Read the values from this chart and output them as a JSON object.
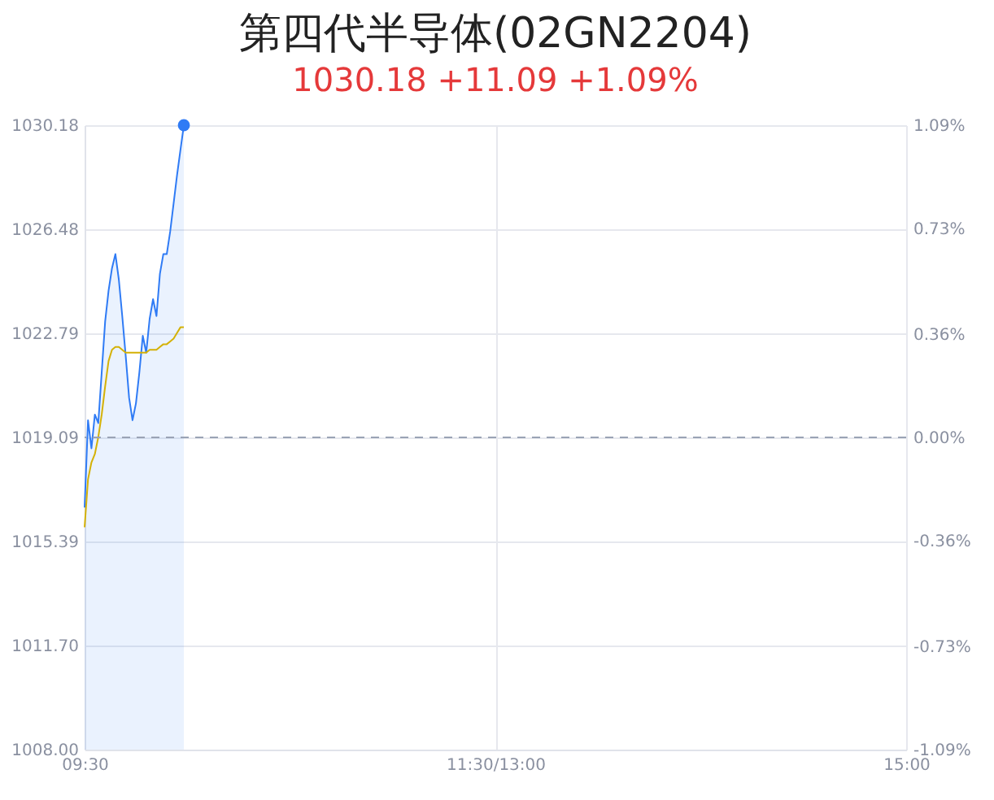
{
  "chart_data": {
    "type": "area",
    "title": "第四代半导体(02GN2204)",
    "subtitle": "1030.18 +11.09 +1.09%",
    "categories": [
      "09:30",
      null,
      null,
      null,
      null,
      null,
      null,
      null,
      null,
      null,
      null,
      null,
      null,
      null,
      null,
      null,
      null,
      null,
      null,
      null,
      null,
      null,
      null,
      null,
      null,
      null,
      null,
      null,
      null,
      null,
      null,
      null,
      null,
      null,
      null,
      null,
      null,
      null,
      null,
      null,
      null,
      null,
      null,
      null,
      null,
      null,
      null,
      null,
      null,
      null,
      null,
      null,
      null,
      null,
      null,
      null,
      null,
      null,
      null,
      null,
      null,
      null,
      null,
      null,
      null,
      null,
      null,
      null,
      null,
      null,
      null,
      null,
      null,
      null,
      null,
      null,
      null,
      null,
      null,
      null,
      null,
      null,
      null,
      null,
      null,
      null,
      null,
      null,
      null,
      null,
      null,
      null,
      null,
      null,
      null,
      null,
      null,
      null,
      null,
      null,
      null,
      null,
      null,
      null,
      null,
      null,
      null,
      null,
      null,
      null,
      null,
      null,
      null,
      null,
      null,
      null,
      null,
      null,
      null,
      null,
      "11:30/13:00",
      null,
      null,
      null,
      null,
      null,
      null,
      null,
      null,
      null,
      null,
      null,
      null,
      null,
      null,
      null,
      null,
      null,
      null,
      null,
      null,
      null,
      null,
      null,
      null,
      null,
      null,
      null,
      null,
      null,
      null,
      null,
      null,
      null,
      null,
      null,
      null,
      null,
      null,
      null,
      null,
      null,
      null,
      null,
      null,
      null,
      null,
      null,
      null,
      null,
      null,
      null,
      null,
      null,
      null,
      null,
      null,
      null,
      null,
      null,
      null,
      null,
      null,
      null,
      null,
      null,
      null,
      null,
      null,
      null,
      null,
      null,
      null,
      null,
      null,
      null,
      null,
      null,
      null,
      null,
      null,
      null,
      null,
      null,
      null,
      null,
      null,
      null,
      null,
      null,
      null,
      null,
      null,
      null,
      null,
      null,
      null,
      null,
      null,
      null,
      null,
      null,
      null,
      null,
      null,
      null,
      null,
      null,
      null,
      null,
      null,
      null,
      null,
      null,
      null,
      null,
      null,
      null,
      null,
      null,
      "15:00"
    ],
    "series": [
      {
        "color": "#2f7bf5",
        "values": [
          1016.6,
          1019.7,
          1018.7,
          1019.9,
          1019.6,
          1021.4,
          1023.2,
          1024.3,
          1025.1,
          1025.6,
          1024.7,
          1023.4,
          1022.0,
          1020.5,
          1019.7,
          1020.3,
          1021.4,
          1022.7,
          1022.1,
          1023.3,
          1024.0,
          1023.4,
          1024.9,
          1025.6,
          1025.6,
          1026.4,
          1027.4,
          1028.4,
          1029.3,
          1030.18,
          null,
          null,
          null,
          null,
          null,
          null,
          null,
          null,
          null,
          null,
          null,
          null,
          null,
          null,
          null,
          null,
          null,
          null,
          null,
          null,
          null,
          null,
          null,
          null,
          null,
          null,
          null,
          null,
          null,
          null,
          null,
          null,
          null,
          null,
          null,
          null,
          null,
          null,
          null,
          null,
          null,
          null,
          null,
          null,
          null,
          null,
          null,
          null,
          null,
          null,
          null,
          null,
          null,
          null,
          null,
          null,
          null,
          null,
          null,
          null,
          null,
          null,
          null,
          null,
          null,
          null,
          null,
          null,
          null,
          null,
          null,
          null,
          null,
          null,
          null,
          null,
          null,
          null,
          null,
          null,
          null,
          null,
          null,
          null,
          null,
          null,
          null,
          null,
          null,
          null,
          null,
          null,
          null,
          null,
          null,
          null,
          null,
          null,
          null,
          null,
          null,
          null,
          null,
          null,
          null,
          null,
          null,
          null,
          null,
          null,
          null,
          null,
          null,
          null,
          null,
          null,
          null,
          null,
          null,
          null,
          null,
          null,
          null,
          null,
          null,
          null,
          null,
          null,
          null,
          null,
          null,
          null,
          null,
          null,
          null,
          null,
          null,
          null,
          null,
          null,
          null,
          null,
          null,
          null,
          null,
          null,
          null,
          null,
          null,
          null,
          null,
          null,
          null,
          null,
          null,
          null,
          null,
          null,
          null,
          null,
          null,
          null,
          null,
          null,
          null,
          null,
          null,
          null,
          null,
          null,
          null,
          null,
          null,
          null,
          null,
          null,
          null,
          null,
          null,
          null,
          null,
          null,
          null,
          null,
          null,
          null,
          null,
          null,
          null,
          null,
          null,
          null,
          null,
          null,
          null,
          null,
          null,
          null,
          null,
          null,
          null,
          null,
          null,
          null,
          null,
          null,
          null,
          null,
          null,
          null,
          null
        ]
      },
      {
        "type": "line",
        "color": "#d4b106",
        "values": [
          1015.9,
          1017.6,
          1018.2,
          1018.5,
          1019.1,
          1019.9,
          1020.9,
          1021.8,
          1022.2,
          1022.3,
          1022.3,
          1022.2,
          1022.1,
          1022.1,
          1022.1,
          1022.1,
          1022.1,
          1022.1,
          1022.1,
          1022.2,
          1022.2,
          1022.2,
          1022.3,
          1022.4,
          1022.4,
          1022.5,
          1022.6,
          1022.8,
          1023.0,
          1023.0,
          null,
          null,
          null,
          null,
          null,
          null,
          null,
          null,
          null,
          null,
          null,
          null,
          null,
          null,
          null,
          null,
          null,
          null,
          null,
          null,
          null,
          null,
          null,
          null,
          null,
          null,
          null,
          null,
          null,
          null,
          null,
          null,
          null,
          null,
          null,
          null,
          null,
          null,
          null,
          null,
          null,
          null,
          null,
          null,
          null,
          null,
          null,
          null,
          null,
          null,
          null,
          null,
          null,
          null,
          null,
          null,
          null,
          null,
          null,
          null,
          null,
          null,
          null,
          null,
          null,
          null,
          null,
          null,
          null,
          null,
          null,
          null,
          null,
          null,
          null,
          null,
          null,
          null,
          null,
          null,
          null,
          null,
          null,
          null,
          null,
          null,
          null,
          null,
          null,
          null,
          null,
          null,
          null,
          null,
          null,
          null,
          null,
          null,
          null,
          null,
          null,
          null,
          null,
          null,
          null,
          null,
          null,
          null,
          null,
          null,
          null,
          null,
          null,
          null,
          null,
          null,
          null,
          null,
          null,
          null,
          null,
          null,
          null,
          null,
          null,
          null,
          null,
          null,
          null,
          null,
          null,
          null,
          null,
          null,
          null,
          null,
          null,
          null,
          null,
          null,
          null,
          null,
          null,
          null,
          null,
          null,
          null,
          null,
          null,
          null,
          null,
          null,
          null,
          null,
          null,
          null,
          null,
          null,
          null,
          null,
          null,
          null,
          null,
          null,
          null,
          null,
          null,
          null,
          null,
          null,
          null,
          null,
          null,
          null,
          null,
          null,
          null,
          null,
          null,
          null,
          null,
          null,
          null,
          null,
          null,
          null,
          null,
          null,
          null,
          null,
          null,
          null,
          null,
          null,
          null,
          null,
          null,
          null,
          null,
          null,
          null,
          null,
          null,
          null,
          null,
          null,
          null,
          null,
          null,
          null,
          null
        ]
      },
      {
        "type": "scatter",
        "color": "#2f7bf5",
        "values": [
          null,
          null,
          null,
          null,
          null,
          null,
          null,
          null,
          null,
          null,
          null,
          null,
          null,
          null,
          null,
          null,
          null,
          null,
          null,
          null,
          null,
          null,
          null,
          null,
          null,
          null,
          null,
          null,
          null,
          1030.18,
          null,
          null,
          null,
          null,
          null,
          null,
          null,
          null,
          null,
          null,
          null,
          null,
          null,
          null,
          null,
          null,
          null,
          null,
          null,
          null,
          null,
          null,
          null,
          null,
          null,
          null,
          null,
          null,
          null,
          null,
          null,
          null,
          null,
          null,
          null,
          null,
          null,
          null,
          null,
          null,
          null,
          null,
          null,
          null,
          null,
          null,
          null,
          null,
          null,
          null,
          null,
          null,
          null,
          null,
          null,
          null,
          null,
          null,
          null,
          null,
          null,
          null,
          null,
          null,
          null,
          null,
          null,
          null,
          null,
          null,
          null,
          null,
          null,
          null,
          null,
          null,
          null,
          null,
          null,
          null,
          null,
          null,
          null,
          null,
          null,
          null,
          null,
          null,
          null,
          null,
          null,
          null,
          null,
          null,
          null,
          null,
          null,
          null,
          null,
          null,
          null,
          null,
          null,
          null,
          null,
          null,
          null,
          null,
          null,
          null,
          null,
          null,
          null,
          null,
          null,
          null,
          null,
          null,
          null,
          null,
          null,
          null,
          null,
          null,
          null,
          null,
          null,
          null,
          null,
          null,
          null,
          null,
          null,
          null,
          null,
          null,
          null,
          null,
          null,
          null,
          null,
          null,
          null,
          null,
          null,
          null,
          null,
          null,
          null,
          null,
          null,
          null,
          null,
          null,
          null,
          null,
          null,
          null,
          null,
          null,
          null,
          null,
          null,
          null,
          null,
          null,
          null,
          null,
          null,
          null,
          null,
          null,
          null,
          null,
          null,
          null,
          null,
          null,
          null,
          null,
          null,
          null,
          null,
          null,
          null,
          null,
          null,
          null,
          null,
          null,
          null,
          null,
          null,
          null,
          null,
          null,
          null,
          null,
          null,
          null,
          null,
          null,
          null,
          null,
          null,
          null,
          null,
          null,
          null,
          null,
          null
        ]
      }
    ],
    "ylim": [
      1008.0,
      1030.18
    ],
    "yticks": [
      {
        "value": 1008.0,
        "label": "1008.00"
      },
      {
        "value": 1011.7,
        "label": "1011.70"
      },
      {
        "value": 1015.39,
        "label": "1015.39"
      },
      {
        "value": 1019.09,
        "label": "1019.09"
      },
      {
        "value": 1022.79,
        "label": "1022.79"
      },
      {
        "value": 1026.48,
        "label": "1026.48"
      },
      {
        "value": 1030.18,
        "label": "1030.18"
      }
    ],
    "y2lim": [
      -1.09,
      1.09
    ],
    "y2ticks": [
      {
        "value": -1.09,
        "label": "-1.09%"
      },
      {
        "value": -0.73,
        "label": "-0.73%"
      },
      {
        "value": -0.36,
        "label": "-0.36%"
      },
      {
        "value": 0,
        "label": "0.00%"
      },
      {
        "value": 0.36,
        "label": "0.36%"
      },
      {
        "value": 0.73,
        "label": "0.73%"
      },
      {
        "value": 1.09,
        "label": "1.09%"
      }
    ],
    "ref_lines": [
      {
        "axis": "y2",
        "value": 0,
        "color": "#9aa3b5",
        "line_style": "dashed"
      }
    ],
    "grid": true
  }
}
